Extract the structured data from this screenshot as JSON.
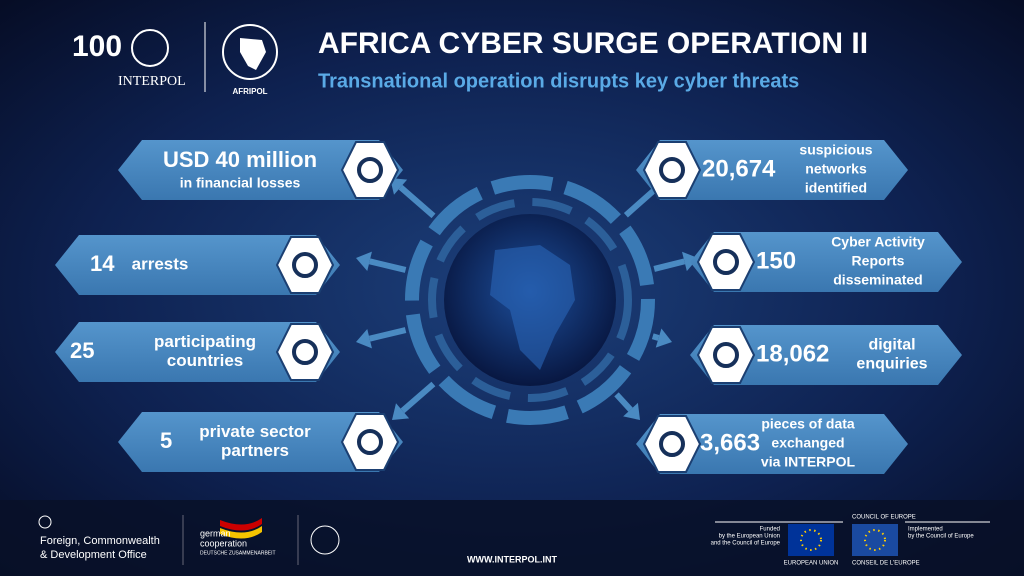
{
  "header": {
    "logo_100": "100",
    "interpol": "INTERPOL",
    "afripol": "AFRIPOL",
    "title": "AFRICA CYBER SURGE OPERATION II",
    "subtitle": "Transnational operation disrupts key cyber threats"
  },
  "stats_left": [
    {
      "value": "USD 40 million",
      "label": [
        "in financial losses"
      ]
    },
    {
      "value": "14",
      "label": [
        "arrests"
      ]
    },
    {
      "value": "25",
      "label": [
        "participating",
        "countries"
      ]
    },
    {
      "value": "5",
      "label": [
        "private sector",
        "partners"
      ]
    }
  ],
  "stats_right": [
    {
      "value": "20,674",
      "label": [
        "suspicious",
        "networks",
        "identified"
      ]
    },
    {
      "value": "150",
      "label": [
        "Cyber Activity",
        "Reports",
        "disseminated"
      ]
    },
    {
      "value": "18,062",
      "label": [
        "digital",
        "enquiries"
      ]
    },
    {
      "value": "3,663",
      "label": [
        "pieces of data",
        "exchanged",
        "via INTERPOL"
      ]
    }
  ],
  "footer": {
    "fcdo": [
      "Foreign, Commonwealth",
      "& Development Office"
    ],
    "giz": [
      "german",
      "cooperation",
      "DEUTSCHE ZUSAMMENARBEIT"
    ],
    "url": "WWW.INTERPOL.INT",
    "funded": [
      "Funded",
      "by the European Union",
      "and the Council of Europe"
    ],
    "eu": "EUROPEAN UNION",
    "coe": [
      "COUNCIL OF EUROPE",
      "CONSEIL DE L'EUROPE"
    ],
    "implemented": [
      "Implemented",
      "by the Council of Europe"
    ]
  }
}
